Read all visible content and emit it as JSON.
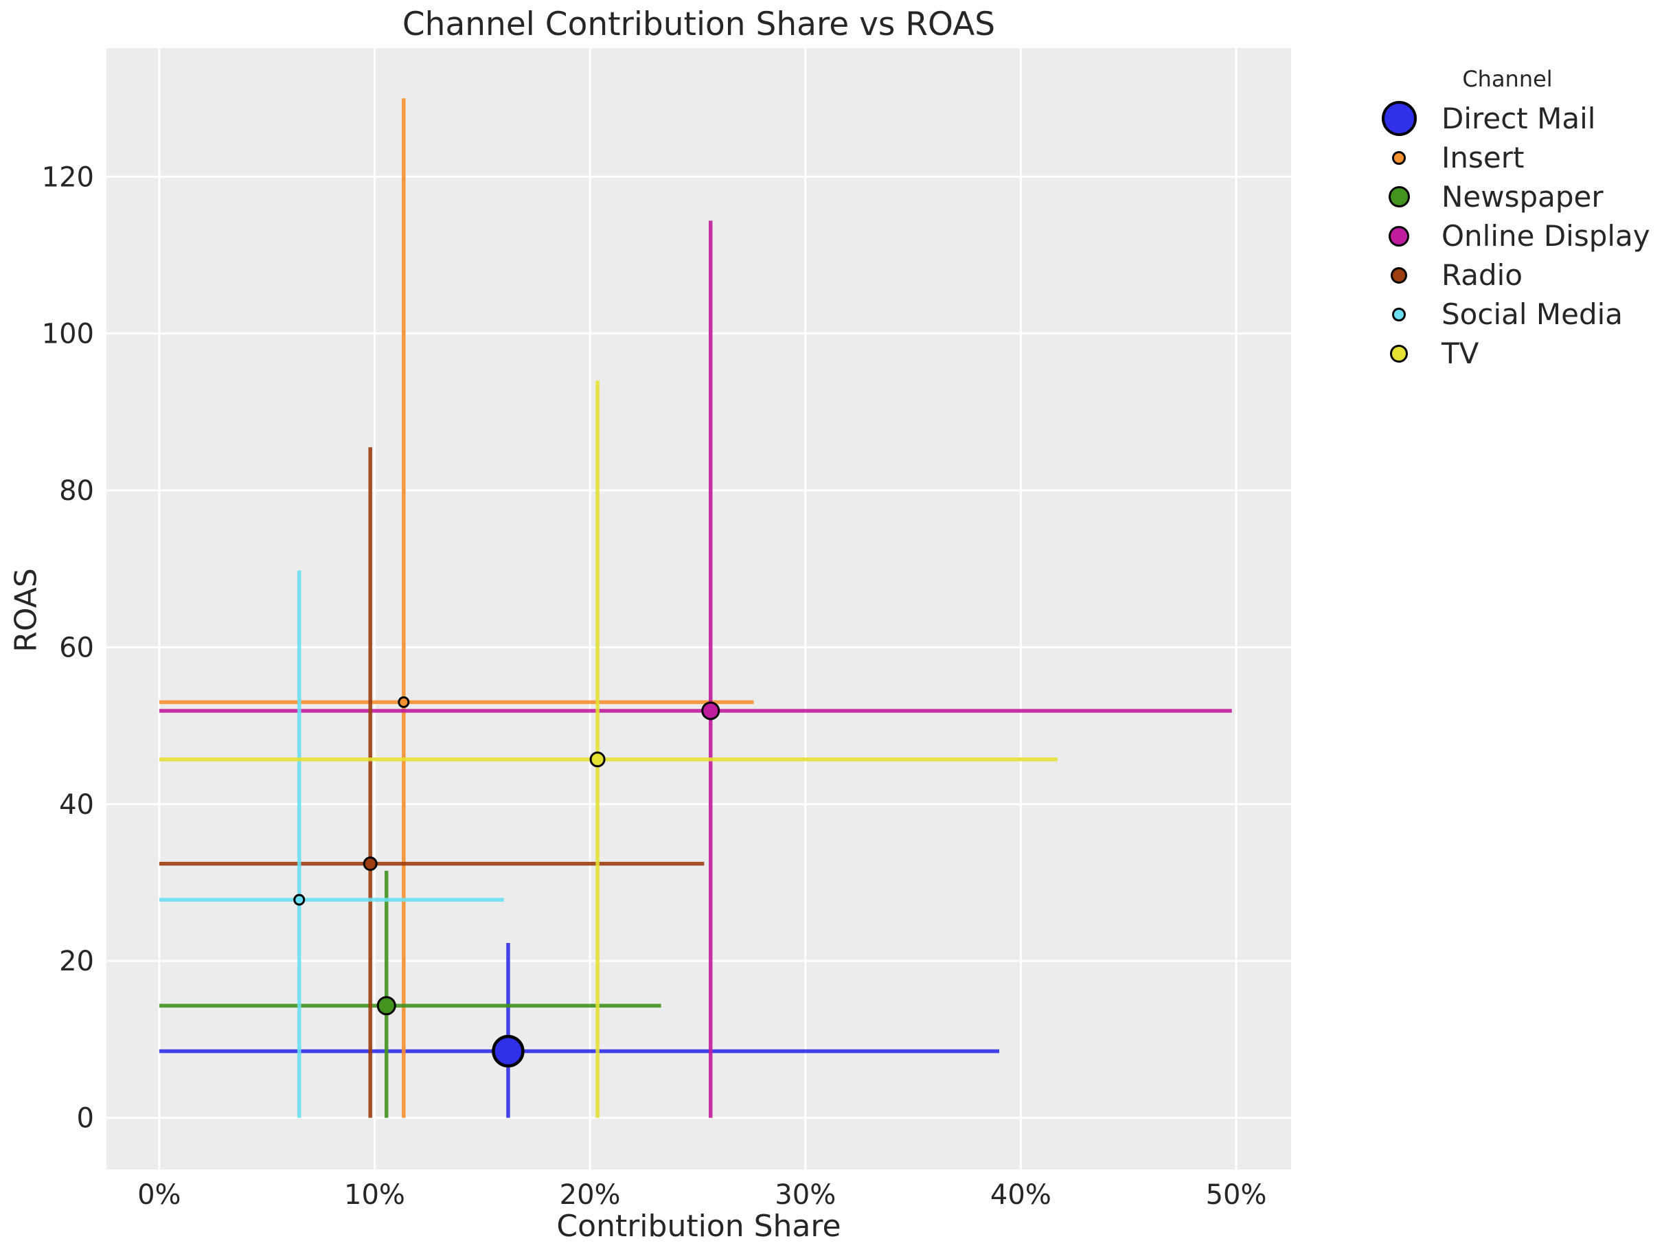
{
  "chart_data": {
    "type": "scatter",
    "title": "Channel Contribution Share vs ROAS",
    "xlabel": "Contribution Share",
    "ylabel": "ROAS",
    "legend_title": "Channel",
    "legend_position": "outside-upper-right",
    "grid": true,
    "xlim": [
      -2.45,
      52.55
    ],
    "ylim": [
      -6.6,
      136.4
    ],
    "x_ticks": [
      {
        "value": 0,
        "label": "0%"
      },
      {
        "value": 10,
        "label": "10%"
      },
      {
        "value": 20,
        "label": "20%"
      },
      {
        "value": 30,
        "label": "30%"
      },
      {
        "value": 40,
        "label": "40%"
      },
      {
        "value": 50,
        "label": "50%"
      }
    ],
    "y_ticks": [
      {
        "value": 0,
        "label": "0"
      },
      {
        "value": 20,
        "label": "20"
      },
      {
        "value": 40,
        "label": "40"
      },
      {
        "value": 60,
        "label": "60"
      },
      {
        "value": 80,
        "label": "80"
      },
      {
        "value": 100,
        "label": "100"
      },
      {
        "value": 120,
        "label": "120"
      }
    ],
    "series": [
      {
        "name": "Direct Mail",
        "color": "#3030e8",
        "x": 16.2,
        "y": 8.5,
        "x_range": [
          0,
          39.0
        ],
        "y_range": [
          0,
          22.3
        ],
        "marker_px": 43
      },
      {
        "name": "Insert",
        "color": "#f5912f",
        "x": 11.35,
        "y": 53.0,
        "x_range": [
          0,
          27.6
        ],
        "y_range": [
          0,
          130.0
        ],
        "marker_px": 14
      },
      {
        "name": "Newspaper",
        "color": "#43941f",
        "x": 10.55,
        "y": 14.3,
        "x_range": [
          0,
          23.3
        ],
        "y_range": [
          0,
          31.5
        ],
        "marker_px": 25
      },
      {
        "name": "Online Display",
        "color": "#c01d9e",
        "x": 25.6,
        "y": 51.9,
        "x_range": [
          0,
          49.8
        ],
        "y_range": [
          0,
          114.4
        ],
        "marker_px": 24
      },
      {
        "name": "Radio",
        "color": "#9c3e0f",
        "x": 9.8,
        "y": 32.4,
        "x_range": [
          0,
          25.3
        ],
        "y_range": [
          0,
          85.5
        ],
        "marker_px": 18
      },
      {
        "name": "Social Media",
        "color": "#6cdff2",
        "x": 6.5,
        "y": 27.8,
        "x_range": [
          0,
          16.0
        ],
        "y_range": [
          0,
          69.8
        ],
        "marker_px": 14
      },
      {
        "name": "TV",
        "color": "#e4e135",
        "x": 20.35,
        "y": 45.7,
        "x_range": [
          0,
          41.7
        ],
        "y_range": [
          0,
          94.0
        ],
        "marker_px": 20
      }
    ],
    "colors": {
      "plot_background": "#ececec",
      "gridline": "#ffffff",
      "text": "#262626",
      "marker_edge": "#000000"
    }
  }
}
